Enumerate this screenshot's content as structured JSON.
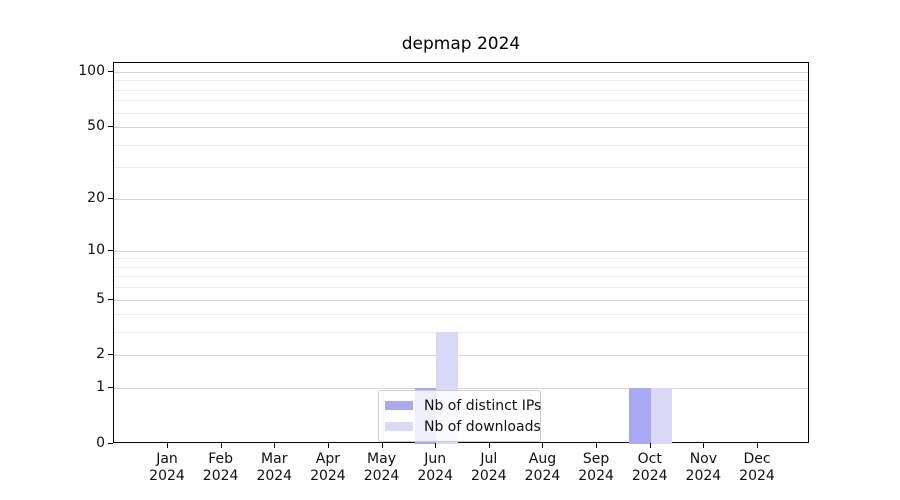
{
  "title": "depmap 2024",
  "legend": {
    "items": [
      {
        "label": "Nb of distinct IPs",
        "color": "#a9a9f3"
      },
      {
        "label": "Nb of downloads",
        "color": "#d9d9f8"
      }
    ]
  },
  "colors": {
    "background": "#ffffff",
    "spine": "#000000",
    "grid_major": "#d2d2d2",
    "grid_minor": "#ececec",
    "bar_distinct_ips": "#a9a9f3",
    "bar_downloads": "#d9d9f8",
    "text": "#111111"
  },
  "chart_data": {
    "type": "bar",
    "title": "depmap 2024",
    "categories": [
      "Jan",
      "Feb",
      "Mar",
      "Apr",
      "May",
      "Jun",
      "Jul",
      "Aug",
      "Sep",
      "Oct",
      "Nov",
      "Dec"
    ],
    "category_year": "2024",
    "series": [
      {
        "name": "Nb of distinct IPs",
        "color": "#a9a9f3",
        "values": [
          0,
          0,
          0,
          0,
          0,
          1,
          0,
          0,
          0,
          1,
          0,
          0
        ]
      },
      {
        "name": "Nb of downloads",
        "color": "#d9d9f8",
        "values": [
          0,
          0,
          0,
          0,
          0,
          3,
          0,
          0,
          0,
          1,
          0,
          0
        ]
      }
    ],
    "xlabel": "",
    "ylabel": "",
    "yscale": "log1p",
    "ylim": [
      0,
      112
    ],
    "y_major_ticks": [
      0,
      1,
      2,
      5,
      10,
      20,
      50,
      100
    ],
    "y_minor_ticks": [
      3,
      4,
      6,
      7,
      8,
      9,
      30,
      40,
      60,
      70,
      80,
      90
    ],
    "grid": true,
    "legend_position": "lower center"
  }
}
